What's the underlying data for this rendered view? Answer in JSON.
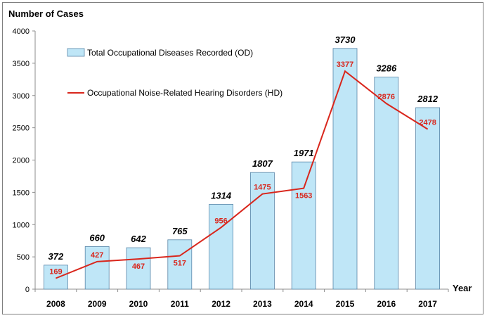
{
  "chart_data": {
    "type": "bar",
    "ylabel": "Number of Cases",
    "xlabel": "Year",
    "ylim": [
      0,
      4000
    ],
    "yticks": [
      0,
      500,
      1000,
      1500,
      2000,
      2500,
      3000,
      3500,
      4000
    ],
    "categories": [
      "2008",
      "2009",
      "2010",
      "2011",
      "2012",
      "2013",
      "2014",
      "2015",
      "2016",
      "2017"
    ],
    "series": [
      {
        "name": "Total Occupational Diseases Recorded (OD)",
        "type": "bar",
        "color": "#bfe6f7",
        "values": [
          372,
          660,
          642,
          765,
          1314,
          1807,
          1971,
          3730,
          3286,
          2812
        ]
      },
      {
        "name": "Occupational Noise-Related Hearing Disorders (HD)",
        "type": "line",
        "color": "#d9261c",
        "values": [
          169,
          427,
          467,
          517,
          956,
          1475,
          1563,
          3377,
          2876,
          2478
        ]
      }
    ],
    "grid": false,
    "legend_position": "top-left"
  }
}
